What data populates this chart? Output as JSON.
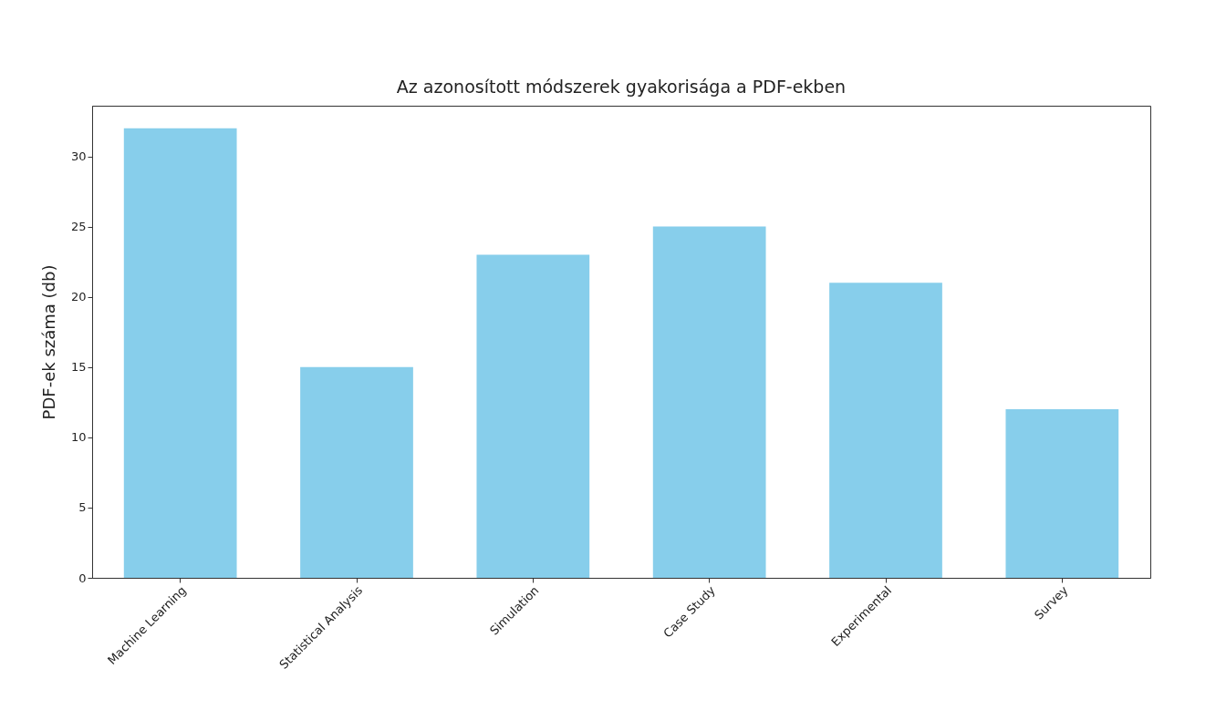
{
  "chart_data": {
    "type": "bar",
    "title": "Az azonosított módszerek gyakorisága a PDF-ekben",
    "ylabel": "PDF-ek száma (db)",
    "categories": [
      "Machine Learning",
      "Statistical Analysis",
      "Simulation",
      "Case Study",
      "Experimental",
      "Survey"
    ],
    "values": [
      32,
      15,
      23,
      25,
      21,
      12
    ],
    "color": "#87ceeb",
    "ylim": [
      0,
      33.6
    ],
    "yticks": [
      0,
      5,
      10,
      15,
      20,
      25,
      30
    ],
    "grid": false
  }
}
